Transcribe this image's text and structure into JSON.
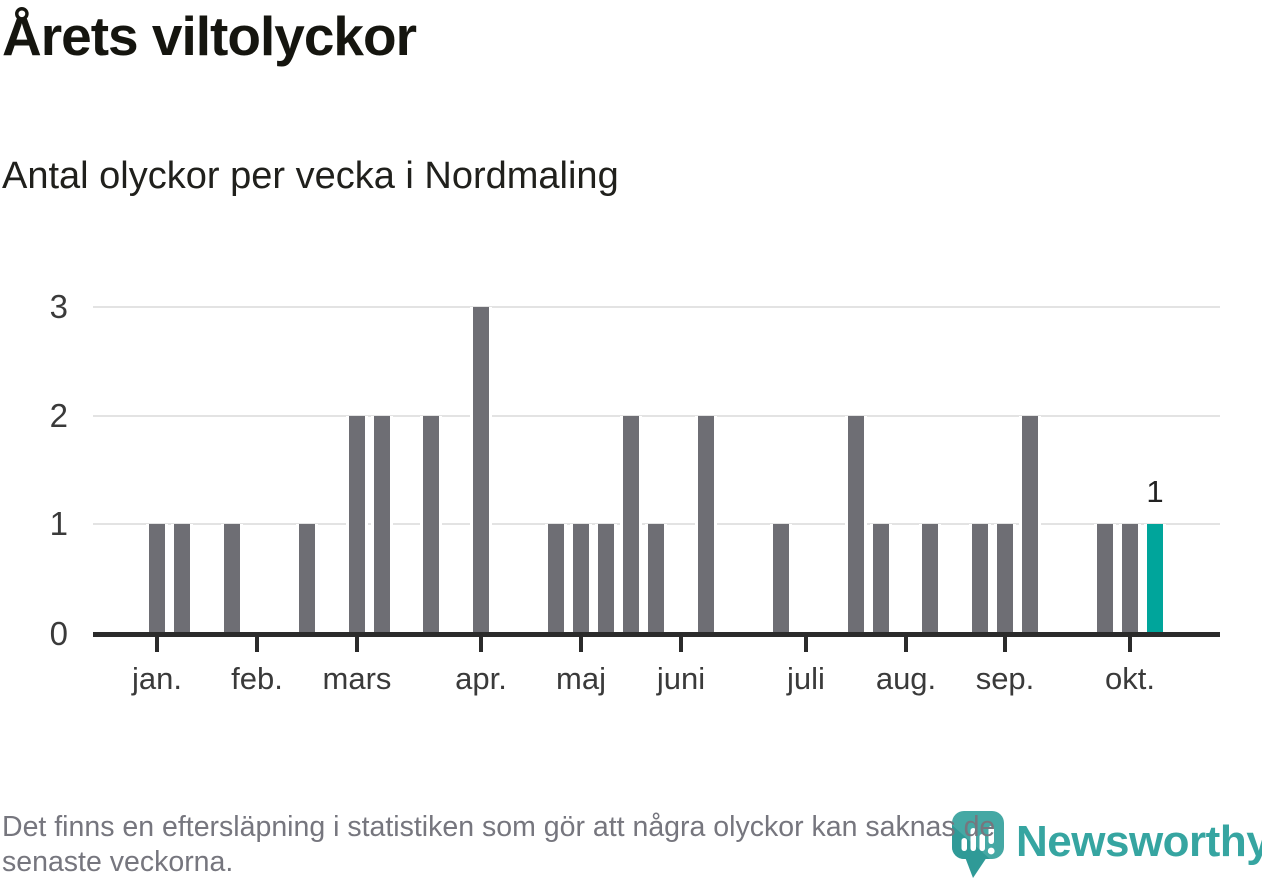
{
  "title": "Årets viltolyckor",
  "subtitle": "Antal olyckor per vecka i Nordmaling",
  "footer": {
    "lines": [
      "Det finns en eftersläpning i statistiken som gör att några olyckor kan saknas de",
      "senaste veckorna."
    ]
  },
  "logo": {
    "brand": "Newsworthy",
    "icon": "newsworthy-chart-bubble-icon"
  },
  "colors": {
    "bar": "#6e6e74",
    "highlight": "#00a59b",
    "gridline": "#e3e3e3",
    "axis": "#2b2b2b",
    "title_text": "#15150f",
    "subtitle_text": "#20201c",
    "axis_label": "#3a3a3a",
    "value_label": "#222222",
    "footer_text": "#76767e",
    "logo_teal": "#36a5a1"
  },
  "chart_data": {
    "type": "bar",
    "title": "Årets viltolyckor",
    "subtitle": "Antal olyckor per vecka i Nordmaling",
    "unit": "antal viltolyckor per vecka",
    "ylim": [
      0,
      3
    ],
    "yticks": [
      0,
      1,
      2,
      3
    ],
    "grid": "horizontal-only",
    "legend": "none",
    "bar_color": "#6e6e74",
    "highlight_color": "#00a59b",
    "x_axis_note": "veckor jan.–okt.; week = veckoindex räknat från första veckan i januari",
    "month_ticks": [
      {
        "label": "jan.",
        "week": 0
      },
      {
        "label": "feb.",
        "week": 4
      },
      {
        "label": "mars",
        "week": 8
      },
      {
        "label": "apr.",
        "week": 13
      },
      {
        "label": "maj",
        "week": 17
      },
      {
        "label": "juni",
        "week": 21
      },
      {
        "label": "juli",
        "week": 26
      },
      {
        "label": "aug.",
        "week": 30
      },
      {
        "label": "sep.",
        "week": 34
      },
      {
        "label": "okt.",
        "week": 39
      }
    ],
    "bars": [
      {
        "week": 0,
        "value": 1
      },
      {
        "week": 1,
        "value": 1
      },
      {
        "week": 3,
        "value": 1
      },
      {
        "week": 6,
        "value": 1
      },
      {
        "week": 8,
        "value": 2
      },
      {
        "week": 9,
        "value": 2
      },
      {
        "week": 11,
        "value": 2
      },
      {
        "week": 13,
        "value": 3
      },
      {
        "week": 16,
        "value": 1
      },
      {
        "week": 17,
        "value": 1
      },
      {
        "week": 18,
        "value": 1
      },
      {
        "week": 19,
        "value": 2
      },
      {
        "week": 20,
        "value": 1
      },
      {
        "week": 22,
        "value": 2
      },
      {
        "week": 25,
        "value": 1
      },
      {
        "week": 28,
        "value": 2
      },
      {
        "week": 29,
        "value": 1
      },
      {
        "week": 31,
        "value": 1
      },
      {
        "week": 33,
        "value": 1
      },
      {
        "week": 34,
        "value": 1
      },
      {
        "week": 35,
        "value": 2
      },
      {
        "week": 38,
        "value": 1
      },
      {
        "week": 39,
        "value": 1
      },
      {
        "week": 40,
        "value": 1,
        "highlighted": true,
        "value_label": "1"
      }
    ]
  }
}
